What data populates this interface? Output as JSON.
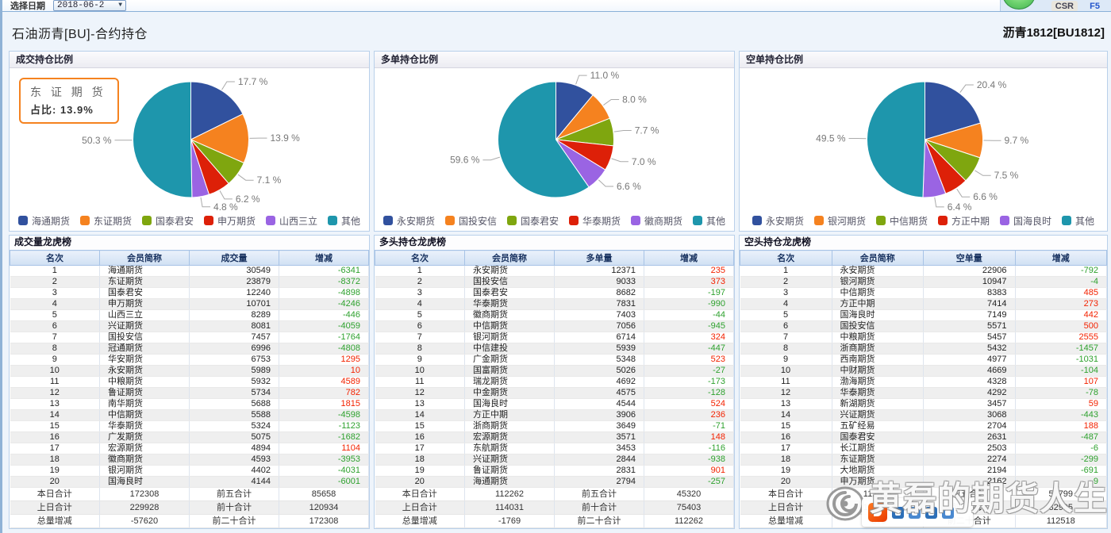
{
  "topbar": {
    "date_label": "选择日期",
    "date_value": "2018-06-2",
    "csr_label": "CSR",
    "f5_label": "F5"
  },
  "header": {
    "title": "石油沥青[BU]-合约持仓",
    "contract": "沥青1812[BU1812]"
  },
  "colors": {
    "pie_palette": [
      "#31519E",
      "#F5821F",
      "#7FA60F",
      "#DD2008",
      "#9A64E3",
      "#1E96AC"
    ],
    "link": "#2f55c0",
    "positive": "#f32200",
    "negative": "#2ea12e"
  },
  "chart_data": [
    {
      "type": "pie",
      "title": "成交持仓比例",
      "categories": [
        "海通期货",
        "东证期货",
        "国泰君安",
        "申万期货",
        "山西三立",
        "其他"
      ],
      "values": [
        17.7,
        13.9,
        7.1,
        6.2,
        4.8,
        50.3
      ],
      "unit": "%",
      "legend_position": "bottom"
    },
    {
      "type": "pie",
      "title": "多单持仓比例",
      "categories": [
        "永安期货",
        "国投安信",
        "国泰君安",
        "华泰期货",
        "徽商期货",
        "其他"
      ],
      "values": [
        11.0,
        8.0,
        7.7,
        7.0,
        6.6,
        59.6
      ],
      "unit": "%",
      "legend_position": "bottom"
    },
    {
      "type": "pie",
      "title": "空单持仓比例",
      "categories": [
        "永安期货",
        "银河期货",
        "中信期货",
        "方正中期",
        "国海良时",
        "其他"
      ],
      "values": [
        20.4,
        9.7,
        7.5,
        6.6,
        6.4,
        49.5
      ],
      "unit": "%",
      "legend_position": "bottom"
    }
  ],
  "tooltip": {
    "name": "东 证 期 货",
    "value_label": "占比: 13.9%"
  },
  "tables": [
    {
      "title": "成交量龙虎榜",
      "columns": [
        "名次",
        "会员简称",
        "成交量",
        "增减"
      ],
      "rows": [
        [
          1,
          "海通期货",
          30549,
          -6341
        ],
        [
          2,
          "东证期货",
          23879,
          -8372
        ],
        [
          3,
          "国泰君安",
          12240,
          -4898
        ],
        [
          4,
          "申万期货",
          10701,
          -4246
        ],
        [
          5,
          "山西三立",
          8289,
          -446
        ],
        [
          6,
          "兴证期货",
          8081,
          -4059
        ],
        [
          7,
          "国投安信",
          7457,
          -1764
        ],
        [
          8,
          "冠通期货",
          6996,
          -4808
        ],
        [
          9,
          "华安期货",
          6753,
          1295
        ],
        [
          10,
          "永安期货",
          5989,
          10
        ],
        [
          11,
          "中粮期货",
          5932,
          4589
        ],
        [
          12,
          "鲁证期货",
          5734,
          782
        ],
        [
          13,
          "南华期货",
          5688,
          1815
        ],
        [
          14,
          "中信期货",
          5588,
          -4598
        ],
        [
          15,
          "华泰期货",
          5324,
          -1123
        ],
        [
          16,
          "广发期货",
          5075,
          -1682
        ],
        [
          17,
          "宏源期货",
          4894,
          1104
        ],
        [
          18,
          "徽商期货",
          4593,
          -3953
        ],
        [
          19,
          "银河期货",
          4402,
          -4031
        ],
        [
          20,
          "国海良时",
          4144,
          -6001
        ]
      ],
      "footer": [
        [
          "本日合计",
          "172308",
          "前五合计",
          "85658"
        ],
        [
          "上日合计",
          "229928",
          "前十合计",
          "120934"
        ],
        [
          "总量增减",
          "-57620",
          "前二十合计",
          "172308"
        ]
      ]
    },
    {
      "title": "多头持仓龙虎榜",
      "columns": [
        "名次",
        "会员简称",
        "多单量",
        "增减"
      ],
      "rows": [
        [
          1,
          "永安期货",
          12371,
          235
        ],
        [
          2,
          "国投安信",
          9033,
          373
        ],
        [
          3,
          "国泰君安",
          8682,
          -197
        ],
        [
          4,
          "华泰期货",
          7831,
          -990
        ],
        [
          5,
          "徽商期货",
          7403,
          -44
        ],
        [
          6,
          "中信期货",
          7056,
          -945
        ],
        [
          7,
          "银河期货",
          6714,
          324
        ],
        [
          8,
          "中信建投",
          5939,
          -447
        ],
        [
          9,
          "广金期货",
          5348,
          523
        ],
        [
          10,
          "国富期货",
          5026,
          -27
        ],
        [
          11,
          "瑞龙期货",
          4692,
          -173
        ],
        [
          12,
          "中金期货",
          4575,
          -128
        ],
        [
          13,
          "国海良时",
          4544,
          524
        ],
        [
          14,
          "方正中期",
          3906,
          236
        ],
        [
          15,
          "浙商期货",
          3649,
          -71
        ],
        [
          16,
          "宏源期货",
          3571,
          148
        ],
        [
          17,
          "东航期货",
          3453,
          -116
        ],
        [
          18,
          "兴证期货",
          2844,
          -938
        ],
        [
          19,
          "鲁证期货",
          2831,
          901
        ],
        [
          20,
          "海通期货",
          2794,
          -257
        ]
      ],
      "footer": [
        [
          "本日合计",
          "112262",
          "前五合计",
          "45320"
        ],
        [
          "上日合计",
          "114031",
          "前十合计",
          "75403"
        ],
        [
          "总量增减",
          "-1769",
          "前二十合计",
          "112262"
        ]
      ]
    },
    {
      "title": "空头持仓龙虎榜",
      "columns": [
        "名次",
        "会员简称",
        "空单量",
        "增减"
      ],
      "rows": [
        [
          1,
          "永安期货",
          22906,
          -792
        ],
        [
          2,
          "银河期货",
          10947,
          -4
        ],
        [
          3,
          "中信期货",
          8383,
          485
        ],
        [
          4,
          "方正中期",
          7414,
          273
        ],
        [
          5,
          "国海良时",
          7149,
          442
        ],
        [
          6,
          "国投安信",
          5571,
          500
        ],
        [
          7,
          "中粮期货",
          5457,
          2555
        ],
        [
          8,
          "浙商期货",
          5432,
          -1457
        ],
        [
          9,
          "西南期货",
          4977,
          -1031
        ],
        [
          10,
          "中财期货",
          4669,
          -104
        ],
        [
          11,
          "渤海期货",
          4328,
          107
        ],
        [
          12,
          "华泰期货",
          4292,
          -78
        ],
        [
          13,
          "新湖期货",
          3457,
          59
        ],
        [
          14,
          "兴证期货",
          3068,
          -443
        ],
        [
          15,
          "五矿经易",
          2704,
          188
        ],
        [
          16,
          "国泰君安",
          2631,
          -487
        ],
        [
          17,
          "长江期货",
          2503,
          -6
        ],
        [
          18,
          "东证期货",
          2274,
          -299
        ],
        [
          19,
          "大地期货",
          2194,
          -691
        ],
        [
          20,
          "申万期货",
          2162,
          -9
        ]
      ],
      "footer": [
        [
          "本日合计",
          "112518",
          "前五合计",
          "56799"
        ],
        [
          "上日合计",
          "113397",
          "前十合计",
          "82905"
        ],
        [
          "总量增减",
          "-879",
          "前二十合计",
          "112518"
        ]
      ]
    }
  ],
  "watermark": {
    "text": "黄磊的期货人生"
  }
}
